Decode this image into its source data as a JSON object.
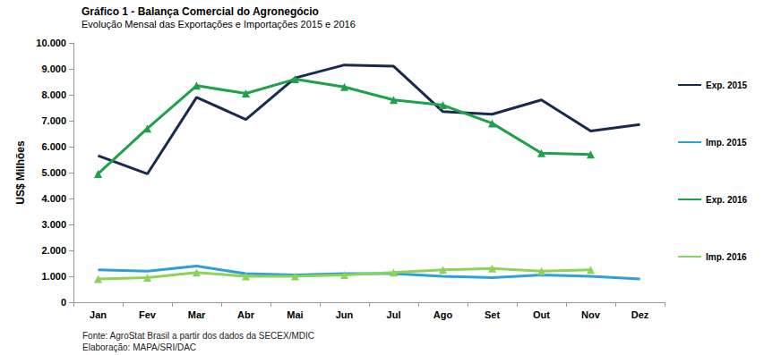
{
  "chart_data": {
    "type": "line",
    "title": "Gráfico 1 - Balança Comercial do Agronegócio",
    "subtitle": "Evolução Mensal das Exportações e Importações 2015 e 2016",
    "y_label": "US$ Milhões",
    "annotations": [
      "Fonte: AgroStat Brasil a partir dos dados da SECEX/MDIC",
      "Elaboração: MAPA/SRI/DAC"
    ],
    "categories": [
      "Jan",
      "Fev",
      "Mar",
      "Abr",
      "Mai",
      "Jun",
      "Jul",
      "Ago",
      "Set",
      "Out",
      "Nov",
      "Dez"
    ],
    "series": [
      {
        "name": "Exp. 2015",
        "color": "#1a2a4f",
        "marker": "none",
        "values": [
          5650,
          4950,
          7900,
          7050,
          8650,
          9150,
          9100,
          7350,
          7250,
          7800,
          6600,
          6850
        ]
      },
      {
        "name": "Imp. 2015",
        "color": "#2e9fd8",
        "marker": "none",
        "values": [
          1250,
          1200,
          1400,
          1100,
          1050,
          1100,
          1100,
          1000,
          950,
          1050,
          1000,
          900
        ]
      },
      {
        "name": "Exp. 2016",
        "color": "#1fa14a",
        "marker": "triangle",
        "values": [
          4950,
          6700,
          8350,
          8050,
          8600,
          8300,
          7800,
          7600,
          6900,
          5750,
          5700,
          null
        ]
      },
      {
        "name": "Imp. 2016",
        "color": "#8cd35a",
        "marker": "triangle",
        "values": [
          900,
          950,
          1150,
          1000,
          1000,
          1050,
          1150,
          1250,
          1300,
          1200,
          1250,
          null
        ]
      }
    ],
    "ylim": [
      0,
      10000
    ],
    "yticks": [
      0,
      {
        "value": 1000,
        "label": "1.000"
      },
      {
        "value": 2000,
        "label": "2.000"
      },
      {
        "value": 3000,
        "label": "3.000"
      },
      {
        "value": 4000,
        "label": "4.000"
      },
      {
        "value": 5000,
        "label": "5.000"
      },
      {
        "value": 6000,
        "label": "6.000"
      },
      {
        "value": 7000,
        "label": "7.000"
      },
      {
        "value": 8000,
        "label": "8.000"
      },
      {
        "value": 9000,
        "label": "9.000"
      },
      {
        "value": 10000,
        "label": "10.000"
      }
    ],
    "grid": false,
    "legend": "right"
  }
}
